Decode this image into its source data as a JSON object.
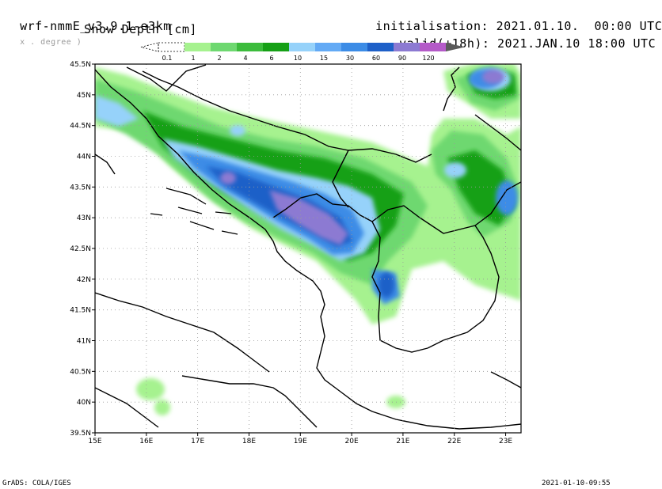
{
  "header": {
    "model": "wrf-nmmE_v3.9.1-e3km",
    "units_note": "x . degree )",
    "variable": "Snow Depth [cm]",
    "init_label": "initialisation:",
    "init_value": "2021.01.10.  00:00 UTC",
    "valid_label": "valid(+18h):",
    "valid_value": "2021.JAN.10 18:00 UTC"
  },
  "legend": {
    "levels": [
      "0.1",
      "1",
      "2",
      "4",
      "6",
      "10",
      "15",
      "30",
      "60",
      "90",
      "120"
    ],
    "colors": [
      "#ffffff",
      "#a6f28f",
      "#6ed870",
      "#3cbc3c",
      "#16a016",
      "#96d2fa",
      "#63aaf5",
      "#3c8ce6",
      "#1e60c8",
      "#8c7ad2",
      "#b45ac8",
      "#5a5a5a"
    ]
  },
  "axes": {
    "x_ticks": [
      "15E",
      "16E",
      "17E",
      "18E",
      "19E",
      "20E",
      "21E",
      "22E",
      "23E"
    ],
    "y_ticks": [
      "45.5N",
      "45N",
      "44.5N",
      "44N",
      "43.5N",
      "43N",
      "42.5N",
      "42N",
      "41.5N",
      "41N",
      "40.5N",
      "40N",
      "39.5N"
    ]
  },
  "footer": {
    "left": "GrADS: COLA/IGES",
    "right": "2021-01-10-09:55"
  }
}
